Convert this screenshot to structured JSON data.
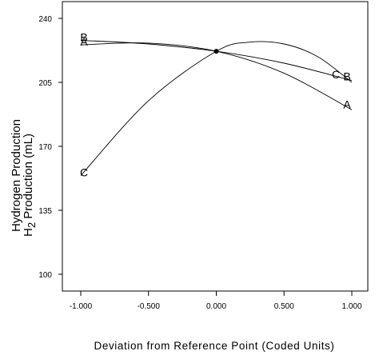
{
  "chart_data": {
    "type": "line",
    "ylabel_line1": "Hydrogen Production",
    "ylabel_line2_prefix": "H",
    "ylabel_line2_sub": "2",
    "ylabel_line2_suffix": " Production (mL)",
    "xlabel": "Deviation from Reference Point (Coded Units)",
    "xlim": [
      -1.0,
      1.0
    ],
    "ylim": [
      100,
      240
    ],
    "xticks": [
      {
        "value": -1.0,
        "label": "-1.000"
      },
      {
        "value": -0.5,
        "label": "-0.500"
      },
      {
        "value": 0.0,
        "label": "0.000"
      },
      {
        "value": 0.5,
        "label": "0.500"
      },
      {
        "value": 1.0,
        "label": "1.000"
      }
    ],
    "yticks": [
      {
        "value": 100,
        "label": "100"
      },
      {
        "value": 135,
        "label": "135"
      },
      {
        "value": 170,
        "label": "170"
      },
      {
        "value": 205,
        "label": "205"
      },
      {
        "value": 240,
        "label": "240"
      }
    ],
    "reference_point": {
      "x": 0.0,
      "y": 222
    },
    "series": [
      {
        "name": "A",
        "x": [
          -1.0,
          -0.5,
          0.0,
          0.5,
          1.0
        ],
        "y": [
          225.5,
          226.5,
          222.0,
          210.0,
          190.0
        ]
      },
      {
        "name": "B",
        "x": [
          -1.0,
          -0.5,
          0.0,
          0.5,
          1.0
        ],
        "y": [
          228.0,
          226.0,
          222.0,
          215.5,
          206.0
        ]
      },
      {
        "name": "C",
        "x": [
          -1.0,
          -0.5,
          0.0,
          0.25,
          0.5,
          0.75,
          1.0
        ],
        "y": [
          154.0,
          195.0,
          222.0,
          227.0,
          226.0,
          219.0,
          205.0
        ]
      }
    ]
  }
}
